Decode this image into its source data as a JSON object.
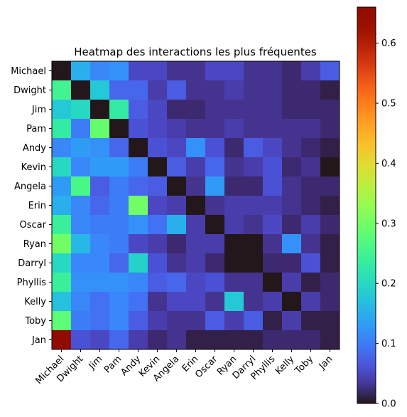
{
  "chart_data": {
    "type": "heatmap",
    "title": "Heatmap des interactions les plus fréquentes",
    "xlabel": "",
    "ylabel": "",
    "rows": [
      "Michael",
      "Dwight",
      "Jim",
      "Pam",
      "Andy",
      "Kevin",
      "Angela",
      "Erin",
      "Oscar",
      "Ryan",
      "Darryl",
      "Phyllis",
      "Kelly",
      "Toby",
      "Jan"
    ],
    "cols": [
      "Michael",
      "Dwight",
      "Jim",
      "Pam",
      "Andy",
      "Kevin",
      "Angela",
      "Erin",
      "Oscar",
      "Ryan",
      "Darryl",
      "Phyllis",
      "Kelly",
      "Toby",
      "Jan"
    ],
    "values": [
      [
        0.0,
        0.15,
        0.11,
        0.12,
        0.05,
        0.05,
        0.03,
        0.03,
        0.05,
        0.05,
        0.03,
        0.03,
        0.02,
        0.04,
        0.07
      ],
      [
        0.25,
        0.0,
        0.18,
        0.08,
        0.08,
        0.04,
        0.07,
        0.03,
        0.03,
        0.04,
        0.03,
        0.03,
        0.02,
        0.02,
        0.01
      ],
      [
        0.18,
        0.2,
        0.0,
        0.23,
        0.07,
        0.05,
        0.02,
        0.02,
        0.03,
        0.03,
        0.03,
        0.03,
        0.02,
        0.02,
        0.02
      ],
      [
        0.23,
        0.1,
        0.29,
        0.0,
        0.06,
        0.05,
        0.04,
        0.03,
        0.03,
        0.04,
        0.03,
        0.03,
        0.03,
        0.03,
        0.02
      ],
      [
        0.11,
        0.13,
        0.12,
        0.08,
        0.0,
        0.06,
        0.05,
        0.12,
        0.06,
        0.02,
        0.07,
        0.05,
        0.03,
        0.02,
        0.01
      ],
      [
        0.2,
        0.11,
        0.13,
        0.13,
        0.1,
        0.0,
        0.07,
        0.04,
        0.08,
        0.03,
        0.04,
        0.06,
        0.02,
        0.03,
        0.0
      ],
      [
        0.13,
        0.26,
        0.07,
        0.1,
        0.08,
        0.07,
        0.0,
        0.03,
        0.13,
        0.02,
        0.02,
        0.06,
        0.03,
        0.02,
        0.02
      ],
      [
        0.15,
        0.11,
        0.08,
        0.1,
        0.3,
        0.05,
        0.04,
        0.0,
        0.03,
        0.04,
        0.04,
        0.04,
        0.03,
        0.02,
        0.01
      ],
      [
        0.24,
        0.11,
        0.1,
        0.1,
        0.12,
        0.09,
        0.15,
        0.04,
        0.0,
        0.04,
        0.03,
        0.05,
        0.02,
        0.04,
        0.02
      ],
      [
        0.3,
        0.16,
        0.11,
        0.1,
        0.05,
        0.04,
        0.02,
        0.04,
        0.04,
        0.0,
        0.0,
        0.03,
        0.12,
        0.03,
        0.01
      ],
      [
        0.2,
        0.11,
        0.11,
        0.08,
        0.19,
        0.06,
        0.03,
        0.04,
        0.02,
        0.0,
        0.0,
        0.02,
        0.02,
        0.06,
        0.01
      ],
      [
        0.24,
        0.12,
        0.12,
        0.12,
        0.11,
        0.07,
        0.08,
        0.05,
        0.06,
        0.03,
        0.03,
        0.0,
        0.04,
        0.01,
        0.02
      ],
      [
        0.17,
        0.11,
        0.09,
        0.11,
        0.09,
        0.03,
        0.05,
        0.05,
        0.03,
        0.18,
        0.03,
        0.04,
        0.0,
        0.04,
        0.02
      ],
      [
        0.28,
        0.1,
        0.09,
        0.11,
        0.07,
        0.04,
        0.03,
        0.03,
        0.07,
        0.04,
        0.07,
        0.01,
        0.04,
        0.01,
        0.01
      ],
      [
        0.66,
        0.06,
        0.05,
        0.08,
        0.04,
        0.02,
        0.03,
        0.01,
        0.01,
        0.01,
        0.01,
        0.02,
        0.02,
        0.02,
        0.01
      ]
    ],
    "colorbar": {
      "colormap": "turbo",
      "range": [
        0.0,
        0.66
      ],
      "ticks": [
        0.0,
        0.1,
        0.2,
        0.3,
        0.4,
        0.5,
        0.6
      ],
      "tick_labels": [
        "0.0",
        "0.1",
        "0.2",
        "0.3",
        "0.4",
        "0.5",
        "0.6"
      ]
    },
    "grid": false
  }
}
